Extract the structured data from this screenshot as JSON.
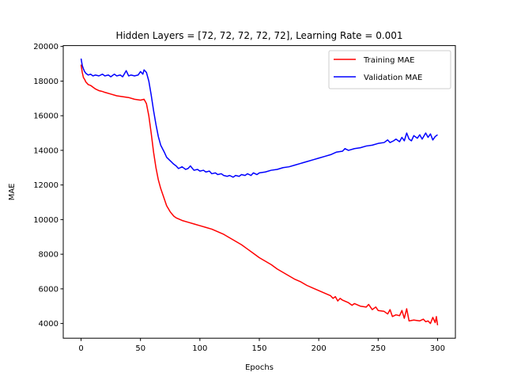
{
  "chart_data": {
    "type": "line",
    "title": "Hidden Layers = [72, 72, 72, 72, 72], Learning Rate = 0.001",
    "xlabel": "Epochs",
    "ylabel": "MAE",
    "xlim": [
      -15,
      315
    ],
    "ylim": [
      3150,
      20050
    ],
    "xticks": [
      0,
      50,
      100,
      150,
      200,
      250,
      300
    ],
    "yticks": [
      4000,
      6000,
      8000,
      10000,
      12000,
      14000,
      16000,
      18000,
      20000
    ],
    "grid": false,
    "legend_position": "top-right",
    "series": [
      {
        "name": "Training MAE",
        "color": "#ff0000",
        "points": [
          [
            0,
            18950
          ],
          [
            1,
            18500
          ],
          [
            2,
            18200
          ],
          [
            3,
            18100
          ],
          [
            4,
            17950
          ],
          [
            6,
            17800
          ],
          [
            8,
            17750
          ],
          [
            10,
            17650
          ],
          [
            12,
            17550
          ],
          [
            15,
            17450
          ],
          [
            18,
            17400
          ],
          [
            20,
            17350
          ],
          [
            25,
            17250
          ],
          [
            30,
            17150
          ],
          [
            35,
            17100
          ],
          [
            40,
            17050
          ],
          [
            45,
            16950
          ],
          [
            50,
            16900
          ],
          [
            53,
            16950
          ],
          [
            55,
            16700
          ],
          [
            57,
            16000
          ],
          [
            59,
            15000
          ],
          [
            61,
            13900
          ],
          [
            63,
            13000
          ],
          [
            65,
            12300
          ],
          [
            67,
            11800
          ],
          [
            70,
            11200
          ],
          [
            72,
            10800
          ],
          [
            75,
            10450
          ],
          [
            78,
            10200
          ],
          [
            80,
            10100
          ],
          [
            85,
            9950
          ],
          [
            90,
            9850
          ],
          [
            95,
            9750
          ],
          [
            100,
            9650
          ],
          [
            105,
            9550
          ],
          [
            110,
            9450
          ],
          [
            115,
            9300
          ],
          [
            120,
            9150
          ],
          [
            125,
            8950
          ],
          [
            130,
            8750
          ],
          [
            135,
            8550
          ],
          [
            140,
            8300
          ],
          [
            145,
            8050
          ],
          [
            150,
            7800
          ],
          [
            155,
            7600
          ],
          [
            160,
            7400
          ],
          [
            165,
            7150
          ],
          [
            170,
            6950
          ],
          [
            175,
            6750
          ],
          [
            180,
            6550
          ],
          [
            185,
            6400
          ],
          [
            190,
            6200
          ],
          [
            195,
            6050
          ],
          [
            200,
            5900
          ],
          [
            205,
            5750
          ],
          [
            210,
            5600
          ],
          [
            212,
            5450
          ],
          [
            214,
            5550
          ],
          [
            216,
            5300
          ],
          [
            218,
            5450
          ],
          [
            220,
            5350
          ],
          [
            225,
            5200
          ],
          [
            228,
            5050
          ],
          [
            230,
            5150
          ],
          [
            235,
            5000
          ],
          [
            240,
            4950
          ],
          [
            242,
            5100
          ],
          [
            245,
            4800
          ],
          [
            248,
            4950
          ],
          [
            250,
            4750
          ],
          [
            255,
            4700
          ],
          [
            258,
            4550
          ],
          [
            260,
            4800
          ],
          [
            262,
            4400
          ],
          [
            265,
            4500
          ],
          [
            268,
            4450
          ],
          [
            270,
            4750
          ],
          [
            272,
            4300
          ],
          [
            274,
            4850
          ],
          [
            276,
            4150
          ],
          [
            280,
            4200
          ],
          [
            285,
            4150
          ],
          [
            288,
            4250
          ],
          [
            290,
            4100
          ],
          [
            292,
            4150
          ],
          [
            294,
            4000
          ],
          [
            296,
            4350
          ],
          [
            298,
            4050
          ],
          [
            299,
            4400
          ],
          [
            300,
            3900
          ]
        ]
      },
      {
        "name": "Validation MAE",
        "color": "#0000ff",
        "points": [
          [
            0,
            19300
          ],
          [
            1,
            18900
          ],
          [
            2,
            18700
          ],
          [
            3,
            18550
          ],
          [
            4,
            18450
          ],
          [
            6,
            18350
          ],
          [
            8,
            18400
          ],
          [
            10,
            18300
          ],
          [
            12,
            18350
          ],
          [
            15,
            18300
          ],
          [
            18,
            18400
          ],
          [
            20,
            18300
          ],
          [
            23,
            18350
          ],
          [
            25,
            18250
          ],
          [
            28,
            18400
          ],
          [
            30,
            18300
          ],
          [
            33,
            18350
          ],
          [
            35,
            18250
          ],
          [
            38,
            18600
          ],
          [
            40,
            18300
          ],
          [
            42,
            18350
          ],
          [
            45,
            18300
          ],
          [
            48,
            18350
          ],
          [
            50,
            18550
          ],
          [
            52,
            18400
          ],
          [
            53,
            18650
          ],
          [
            55,
            18500
          ],
          [
            57,
            18000
          ],
          [
            59,
            17200
          ],
          [
            61,
            16300
          ],
          [
            63,
            15500
          ],
          [
            65,
            14800
          ],
          [
            67,
            14300
          ],
          [
            70,
            13900
          ],
          [
            72,
            13600
          ],
          [
            75,
            13400
          ],
          [
            78,
            13200
          ],
          [
            80,
            13100
          ],
          [
            82,
            12950
          ],
          [
            85,
            13050
          ],
          [
            88,
            12900
          ],
          [
            90,
            12950
          ],
          [
            92,
            13100
          ],
          [
            95,
            12850
          ],
          [
            98,
            12900
          ],
          [
            100,
            12800
          ],
          [
            103,
            12850
          ],
          [
            105,
            12750
          ],
          [
            108,
            12800
          ],
          [
            110,
            12650
          ],
          [
            113,
            12700
          ],
          [
            115,
            12600
          ],
          [
            118,
            12650
          ],
          [
            120,
            12550
          ],
          [
            123,
            12500
          ],
          [
            125,
            12550
          ],
          [
            128,
            12450
          ],
          [
            130,
            12550
          ],
          [
            133,
            12500
          ],
          [
            135,
            12600
          ],
          [
            138,
            12550
          ],
          [
            140,
            12650
          ],
          [
            143,
            12550
          ],
          [
            145,
            12700
          ],
          [
            148,
            12600
          ],
          [
            150,
            12700
          ],
          [
            155,
            12750
          ],
          [
            160,
            12850
          ],
          [
            165,
            12900
          ],
          [
            170,
            13000
          ],
          [
            175,
            13050
          ],
          [
            180,
            13150
          ],
          [
            185,
            13250
          ],
          [
            190,
            13350
          ],
          [
            195,
            13450
          ],
          [
            200,
            13550
          ],
          [
            205,
            13650
          ],
          [
            210,
            13750
          ],
          [
            215,
            13900
          ],
          [
            220,
            13950
          ],
          [
            222,
            14100
          ],
          [
            225,
            14000
          ],
          [
            230,
            14100
          ],
          [
            235,
            14150
          ],
          [
            240,
            14250
          ],
          [
            245,
            14300
          ],
          [
            250,
            14400
          ],
          [
            255,
            14450
          ],
          [
            258,
            14600
          ],
          [
            260,
            14450
          ],
          [
            263,
            14550
          ],
          [
            265,
            14650
          ],
          [
            268,
            14500
          ],
          [
            270,
            14750
          ],
          [
            272,
            14550
          ],
          [
            274,
            15000
          ],
          [
            276,
            14650
          ],
          [
            278,
            14550
          ],
          [
            280,
            14850
          ],
          [
            283,
            14700
          ],
          [
            285,
            14900
          ],
          [
            287,
            14650
          ],
          [
            290,
            15000
          ],
          [
            292,
            14750
          ],
          [
            294,
            14950
          ],
          [
            296,
            14600
          ],
          [
            298,
            14800
          ],
          [
            300,
            14900
          ]
        ]
      }
    ]
  }
}
